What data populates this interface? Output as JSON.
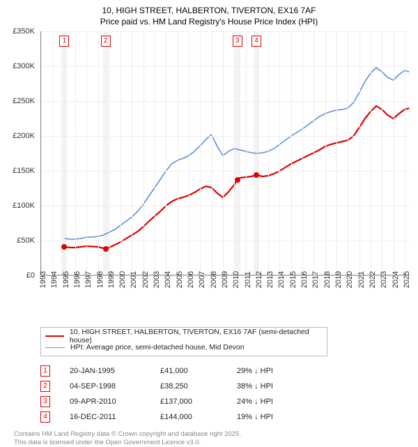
{
  "title_line1": "10, HIGH STREET, HALBERTON, TIVERTON, EX16 7AF",
  "title_line2": "Price paid vs. HM Land Registry's House Price Index (HPI)",
  "chart": {
    "type": "line",
    "background_color": "#ffffff",
    "grid_color": "#f0ecec",
    "axis_color": "#888888",
    "font_size_axis": 11,
    "x_years": [
      1993,
      1994,
      1995,
      1996,
      1997,
      1998,
      1999,
      2000,
      2001,
      2002,
      2003,
      2004,
      2005,
      2006,
      2007,
      2008,
      2009,
      2010,
      2011,
      2012,
      2013,
      2014,
      2015,
      2016,
      2017,
      2018,
      2019,
      2020,
      2021,
      2022,
      2023,
      2024,
      2025
    ],
    "y_ticks": [
      0,
      50000,
      100000,
      150000,
      200000,
      250000,
      300000,
      350000
    ],
    "y_tick_labels": [
      "£0",
      "£50K",
      "£100K",
      "£150K",
      "£200K",
      "£250K",
      "£300K",
      "£350K"
    ],
    "ylim": [
      0,
      350000
    ],
    "xlim": [
      1993,
      2025.5
    ],
    "series_red": {
      "label": "10, HIGH STREET, HALBERTON, TIVERTON, EX16 7AF (semi-detached house)",
      "color": "#e00000",
      "line_width": 2.2,
      "data": [
        [
          1995.05,
          41000
        ],
        [
          1995.5,
          40000
        ],
        [
          1996,
          40000
        ],
        [
          1996.5,
          41000
        ],
        [
          1997,
          42000
        ],
        [
          1997.5,
          41500
        ],
        [
          1998,
          41000
        ],
        [
          1998.68,
          38250
        ],
        [
          1999,
          40000
        ],
        [
          1999.5,
          44000
        ],
        [
          2000,
          48000
        ],
        [
          2000.5,
          53000
        ],
        [
          2001,
          58000
        ],
        [
          2001.5,
          63000
        ],
        [
          2002,
          70000
        ],
        [
          2002.5,
          78000
        ],
        [
          2003,
          85000
        ],
        [
          2003.5,
          92000
        ],
        [
          2004,
          100000
        ],
        [
          2004.5,
          106000
        ],
        [
          2005,
          110000
        ],
        [
          2005.5,
          112000
        ],
        [
          2006,
          115000
        ],
        [
          2006.5,
          119000
        ],
        [
          2007,
          124000
        ],
        [
          2007.5,
          128000
        ],
        [
          2008,
          126000
        ],
        [
          2008.5,
          118000
        ],
        [
          2009,
          112000
        ],
        [
          2009.5,
          120000
        ],
        [
          2010,
          130000
        ],
        [
          2010.27,
          137000
        ],
        [
          2010.5,
          140000
        ],
        [
          2011,
          141000
        ],
        [
          2011.5,
          142000
        ],
        [
          2011.96,
          144000
        ],
        [
          2012.5,
          142000
        ],
        [
          2013,
          143000
        ],
        [
          2013.5,
          146000
        ],
        [
          2014,
          150000
        ],
        [
          2014.5,
          155000
        ],
        [
          2015,
          160000
        ],
        [
          2015.5,
          164000
        ],
        [
          2016,
          168000
        ],
        [
          2016.5,
          172000
        ],
        [
          2017,
          176000
        ],
        [
          2017.5,
          180000
        ],
        [
          2018,
          185000
        ],
        [
          2018.5,
          188000
        ],
        [
          2019,
          190000
        ],
        [
          2019.5,
          192000
        ],
        [
          2020,
          194000
        ],
        [
          2020.5,
          200000
        ],
        [
          2021,
          212000
        ],
        [
          2021.5,
          225000
        ],
        [
          2022,
          235000
        ],
        [
          2022.5,
          243000
        ],
        [
          2023,
          238000
        ],
        [
          2023.5,
          230000
        ],
        [
          2024,
          225000
        ],
        [
          2024.5,
          232000
        ],
        [
          2025,
          238000
        ],
        [
          2025.4,
          240000
        ]
      ]
    },
    "series_blue": {
      "label": "HPI: Average price, semi-detached house, Mid Devon",
      "color": "#5b8fd6",
      "line_width": 1.6,
      "data": [
        [
          1995.05,
          53000
        ],
        [
          1995.5,
          52000
        ],
        [
          1996,
          52000
        ],
        [
          1996.5,
          53000
        ],
        [
          1997,
          55000
        ],
        [
          1997.5,
          55000
        ],
        [
          1998,
          56000
        ],
        [
          1998.5,
          58000
        ],
        [
          1999,
          62000
        ],
        [
          1999.5,
          66000
        ],
        [
          2000,
          72000
        ],
        [
          2000.5,
          78000
        ],
        [
          2001,
          84000
        ],
        [
          2001.5,
          92000
        ],
        [
          2002,
          102000
        ],
        [
          2002.5,
          114000
        ],
        [
          2003,
          126000
        ],
        [
          2003.5,
          138000
        ],
        [
          2004,
          150000
        ],
        [
          2004.5,
          160000
        ],
        [
          2005,
          165000
        ],
        [
          2005.5,
          168000
        ],
        [
          2006,
          172000
        ],
        [
          2006.5,
          178000
        ],
        [
          2007,
          186000
        ],
        [
          2007.5,
          195000
        ],
        [
          2008,
          202000
        ],
        [
          2008.5,
          185000
        ],
        [
          2009,
          172000
        ],
        [
          2009.5,
          178000
        ],
        [
          2010,
          182000
        ],
        [
          2010.5,
          180000
        ],
        [
          2011,
          178000
        ],
        [
          2011.5,
          176000
        ],
        [
          2012,
          175000
        ],
        [
          2012.5,
          176000
        ],
        [
          2013,
          178000
        ],
        [
          2013.5,
          182000
        ],
        [
          2014,
          188000
        ],
        [
          2014.5,
          194000
        ],
        [
          2015,
          200000
        ],
        [
          2015.5,
          205000
        ],
        [
          2016,
          210000
        ],
        [
          2016.5,
          216000
        ],
        [
          2017,
          222000
        ],
        [
          2017.5,
          228000
        ],
        [
          2018,
          232000
        ],
        [
          2018.5,
          235000
        ],
        [
          2019,
          237000
        ],
        [
          2019.5,
          238000
        ],
        [
          2020,
          240000
        ],
        [
          2020.5,
          248000
        ],
        [
          2021,
          262000
        ],
        [
          2021.5,
          278000
        ],
        [
          2022,
          290000
        ],
        [
          2022.5,
          298000
        ],
        [
          2023,
          292000
        ],
        [
          2023.5,
          284000
        ],
        [
          2024,
          280000
        ],
        [
          2024.5,
          288000
        ],
        [
          2025,
          294000
        ],
        [
          2025.4,
          292000
        ]
      ]
    },
    "sale_points": [
      {
        "n": "1",
        "year": 1995.05,
        "price": 41000
      },
      {
        "n": "2",
        "year": 1998.68,
        "price": 38250
      },
      {
        "n": "3",
        "year": 2010.27,
        "price": 137000
      },
      {
        "n": "4",
        "year": 2011.96,
        "price": 144000
      }
    ],
    "marker_box_color": "#e00000",
    "dot_color": "#e00000"
  },
  "legend": {
    "border_color": "#bbbbbb",
    "font_size": 10.5
  },
  "sales_table": [
    {
      "n": "1",
      "date": "20-JAN-1995",
      "price": "£41,000",
      "delta": "29% ↓ HPI"
    },
    {
      "n": "2",
      "date": "04-SEP-1998",
      "price": "£38,250",
      "delta": "38% ↓ HPI"
    },
    {
      "n": "3",
      "date": "09-APR-2010",
      "price": "£137,000",
      "delta": "24% ↓ HPI"
    },
    {
      "n": "4",
      "date": "16-DEC-2011",
      "price": "£144,000",
      "delta": "19% ↓ HPI"
    }
  ],
  "footer_line1": "Contains HM Land Registry data © Crown copyright and database right 2025.",
  "footer_line2": "This data is licensed under the Open Government Licence v3.0."
}
